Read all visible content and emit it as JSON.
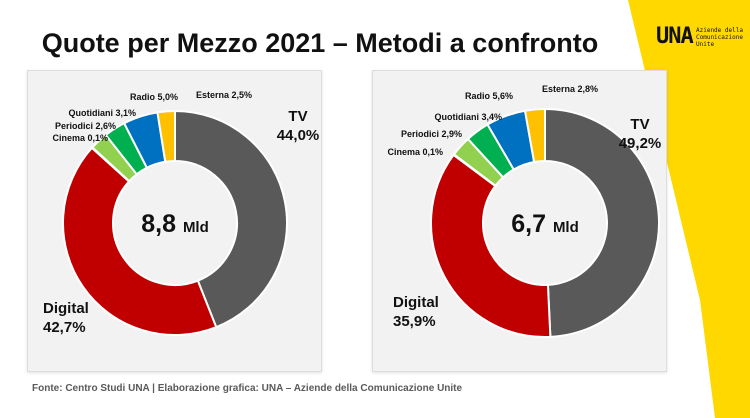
{
  "title": "Quote per Mezzo 2021 – Metodi a confronto",
  "logo": {
    "mark": "UNA",
    "text_lines": [
      "Aziende della",
      "Comunicazione",
      "Unite"
    ]
  },
  "colors": {
    "accent_yellow": "#ffd800",
    "panel_bg": "#f2f2f2"
  },
  "source": "Fonte: Centro Studi UNA | Elaborazione grafica: UNA – Aziende della Comunicazione Unite",
  "chart_data": [
    {
      "type": "pie",
      "donut": true,
      "center_value": "8,8",
      "center_unit": "Mld",
      "slices": [
        {
          "name": "TV",
          "value": 44.0,
          "label": "44,0%",
          "color": "#595959"
        },
        {
          "name": "Digital",
          "value": 42.7,
          "label": "42,7%",
          "color": "#c00000"
        },
        {
          "name": "Cinema",
          "value": 0.1,
          "label": "0,1%",
          "color": "#e06666"
        },
        {
          "name": "Periodici",
          "value": 2.6,
          "label": "2,6%",
          "color": "#92d050"
        },
        {
          "name": "Quotidiani",
          "value": 3.1,
          "label": "3,1%",
          "color": "#00b050"
        },
        {
          "name": "Radio",
          "value": 5.0,
          "label": "5,0%",
          "color": "#0070c0"
        },
        {
          "name": "Esterna",
          "value": 2.5,
          "label": "2,5%",
          "color": "#ffc000"
        }
      ]
    },
    {
      "type": "pie",
      "donut": true,
      "center_value": "6,7",
      "center_unit": "Mld",
      "slices": [
        {
          "name": "TV",
          "value": 49.2,
          "label": "49,2%",
          "color": "#595959"
        },
        {
          "name": "Digital",
          "value": 35.9,
          "label": "35,9%",
          "color": "#c00000"
        },
        {
          "name": "Cinema",
          "value": 0.1,
          "label": "0,1%",
          "color": "#e06666"
        },
        {
          "name": "Periodici",
          "value": 2.9,
          "label": "2,9%",
          "color": "#92d050"
        },
        {
          "name": "Quotidiani",
          "value": 3.4,
          "label": "3,4%",
          "color": "#00b050"
        },
        {
          "name": "Radio",
          "value": 5.6,
          "label": "5,6%",
          "color": "#0070c0"
        },
        {
          "name": "Esterna",
          "value": 2.8,
          "label": "2,8%",
          "color": "#ffc000"
        }
      ]
    }
  ]
}
